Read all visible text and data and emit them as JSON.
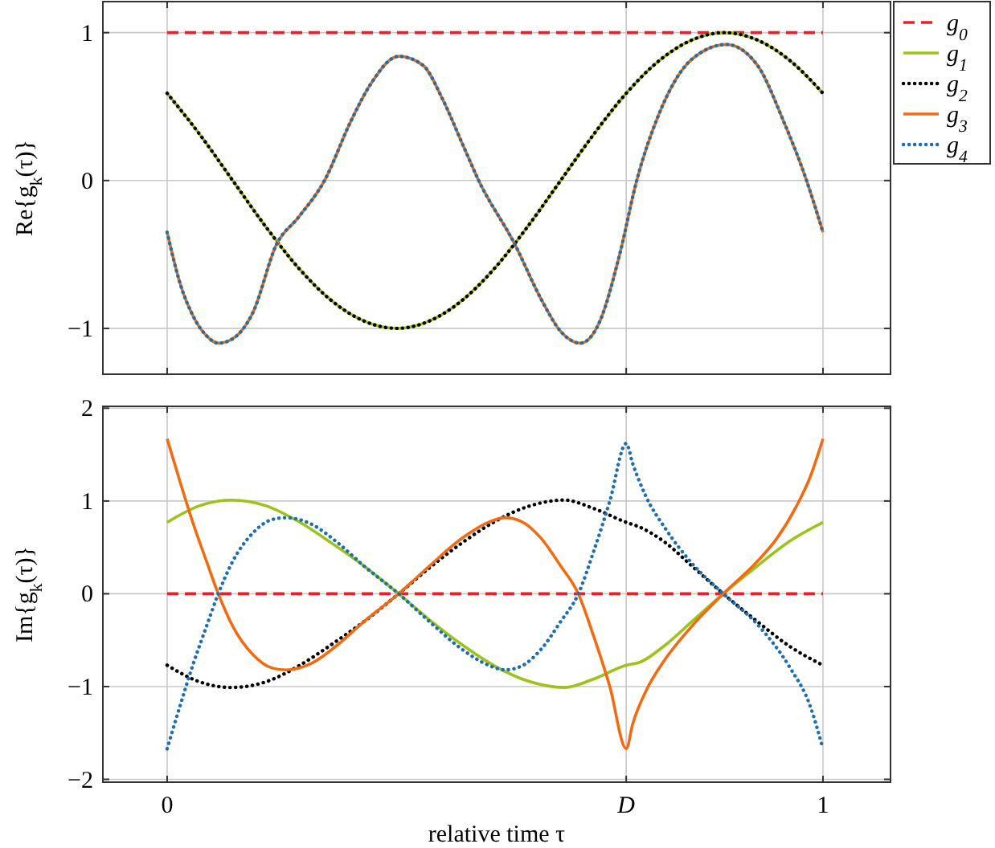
{
  "chart_data": [
    {
      "type": "line",
      "ylabel": "Re{g$_{k}$(τ)}",
      "xlim": [
        -0.098,
        1.103
      ],
      "xticks": [
        {
          "value": 0,
          "label": null
        },
        {
          "value": 0.7,
          "label": null
        },
        {
          "value": 1,
          "label": null
        }
      ],
      "ylim": [
        -1.31,
        1.21
      ],
      "yticks": [
        -1,
        0,
        1
      ],
      "tick_labels": "y",
      "grid": true,
      "legend": "top right",
      "series": [
        {
          "name": "g$_{0}$",
          "color": "#e8202a",
          "line_style": "dashed",
          "x": [
            0,
            1
          ],
          "values": [
            1,
            1
          ]
        },
        {
          "name": "g$_{1}$",
          "color": "#9bc31c",
          "line_style": "solid",
          "x": [
            0,
            0.05,
            0.1,
            0.15,
            0.2,
            0.25,
            0.3,
            0.35,
            0.4,
            0.45,
            0.5,
            0.55,
            0.6,
            0.65,
            0.7,
            0.75,
            0.8,
            0.85,
            0.9,
            0.95,
            1
          ],
          "values": [
            0.59,
            0.31,
            0.0,
            -0.31,
            -0.59,
            -0.81,
            -0.95,
            -1.0,
            -0.95,
            -0.81,
            -0.59,
            -0.31,
            0.0,
            0.31,
            0.59,
            0.81,
            0.95,
            1.0,
            0.95,
            0.81,
            0.59
          ]
        },
        {
          "name": "g$_{2}$",
          "color": "#000000",
          "line_style": "dotted",
          "x": [
            0,
            0.05,
            0.1,
            0.15,
            0.2,
            0.25,
            0.3,
            0.35,
            0.4,
            0.45,
            0.5,
            0.55,
            0.6,
            0.65,
            0.7,
            0.75,
            0.8,
            0.85,
            0.9,
            0.95,
            1
          ],
          "values": [
            0.59,
            0.31,
            0.0,
            -0.31,
            -0.59,
            -0.81,
            -0.95,
            -1.0,
            -0.95,
            -0.81,
            -0.59,
            -0.31,
            0.0,
            0.31,
            0.59,
            0.81,
            0.95,
            1.0,
            0.95,
            0.81,
            0.59
          ]
        },
        {
          "name": "g$_{3}$",
          "color": "#f26b10",
          "line_style": "solid",
          "x": [
            0,
            0.02,
            0.04,
            0.06,
            0.078,
            0.1,
            0.13,
            0.167,
            0.2,
            0.24,
            0.28,
            0.31,
            0.353,
            0.39,
            0.42,
            0.45,
            0.475,
            0.53,
            0.57,
            0.6,
            0.63,
            0.66,
            0.69,
            0.716,
            0.75,
            0.8,
            0.853,
            0.9,
            0.94,
            0.975,
            1
          ],
          "values": [
            -0.35,
            -0.7,
            -0.92,
            -1.05,
            -1.1,
            -1.07,
            -0.9,
            -0.43,
            -0.25,
            0,
            0.4,
            0.65,
            0.84,
            0.78,
            0.55,
            0.25,
            0,
            -0.43,
            -0.8,
            -1.02,
            -1.1,
            -0.95,
            -0.5,
            0,
            0.45,
            0.82,
            0.92,
            0.78,
            0.4,
            0,
            -0.35
          ]
        },
        {
          "name": "g$_{4}$",
          "color": "#1f6fae",
          "line_style": "dotted",
          "x": [
            0,
            0.02,
            0.04,
            0.06,
            0.078,
            0.1,
            0.13,
            0.167,
            0.2,
            0.24,
            0.28,
            0.31,
            0.353,
            0.39,
            0.42,
            0.45,
            0.475,
            0.53,
            0.57,
            0.6,
            0.63,
            0.66,
            0.69,
            0.716,
            0.75,
            0.8,
            0.853,
            0.9,
            0.94,
            0.975,
            1
          ],
          "values": [
            -0.35,
            -0.7,
            -0.92,
            -1.05,
            -1.1,
            -1.07,
            -0.9,
            -0.43,
            -0.25,
            0,
            0.4,
            0.65,
            0.84,
            0.78,
            0.55,
            0.25,
            0,
            -0.43,
            -0.8,
            -1.02,
            -1.1,
            -0.95,
            -0.5,
            0,
            0.45,
            0.82,
            0.92,
            0.78,
            0.4,
            0,
            -0.35
          ]
        }
      ]
    },
    {
      "type": "line",
      "xlabel": "relative time τ",
      "ylabel": "Im{g$_{k}$(τ)}",
      "xlim": [
        -0.098,
        1.103
      ],
      "xticks": [
        0,
        {
          "value": 0.7,
          "label": "D"
        },
        1
      ],
      "ylim": [
        -2.03,
        2.02
      ],
      "yticks": [
        -2,
        -1,
        0,
        1,
        2
      ],
      "grid": true,
      "series": [
        {
          "color": "#e8202a",
          "line_style": "dashed",
          "x": [
            0,
            1
          ],
          "values": [
            0,
            0
          ]
        },
        {
          "color": "#9bc31c",
          "line_style": "solid",
          "x": [
            0,
            0.05,
            0.098,
            0.15,
            0.2,
            0.25,
            0.3,
            0.353,
            0.4,
            0.45,
            0.5,
            0.55,
            0.606,
            0.65,
            0.7,
            0.72,
            0.76,
            0.8,
            0.848,
            0.9,
            0.95,
            1
          ],
          "values": [
            0.77,
            0.95,
            1.01,
            0.95,
            0.78,
            0.55,
            0.3,
            0,
            -0.28,
            -0.55,
            -0.78,
            -0.94,
            -1.01,
            -0.92,
            -0.77,
            -0.74,
            -0.55,
            -0.3,
            0,
            0.3,
            0.57,
            0.77
          ]
        },
        {
          "color": "#000000",
          "line_style": "dotted",
          "x": [
            0,
            0.05,
            0.098,
            0.15,
            0.2,
            0.25,
            0.3,
            0.353,
            0.4,
            0.45,
            0.5,
            0.55,
            0.606,
            0.65,
            0.7,
            0.72,
            0.76,
            0.8,
            0.848,
            0.9,
            0.95,
            1
          ],
          "values": [
            -0.77,
            -0.95,
            -1.01,
            -0.95,
            -0.78,
            -0.55,
            -0.3,
            0,
            0.28,
            0.55,
            0.78,
            0.94,
            1.01,
            0.92,
            0.77,
            0.72,
            0.55,
            0.3,
            0,
            -0.3,
            -0.57,
            -0.77
          ]
        },
        {
          "color": "#f26b10",
          "line_style": "solid",
          "x": [
            0,
            0.02,
            0.04,
            0.06,
            0.078,
            0.1,
            0.13,
            0.16,
            0.181,
            0.22,
            0.26,
            0.3,
            0.353,
            0.4,
            0.45,
            0.49,
            0.515,
            0.54,
            0.57,
            0.6,
            0.627,
            0.65,
            0.675,
            0.7,
            0.71,
            0.73,
            0.76,
            0.8,
            0.848,
            0.9,
            0.93,
            0.96,
            0.98,
            1
          ],
          "values": [
            1.67,
            1.2,
            0.75,
            0.35,
            0,
            -0.35,
            -0.65,
            -0.8,
            -0.82,
            -0.75,
            -0.55,
            -0.3,
            0,
            0.3,
            0.6,
            0.77,
            0.82,
            0.78,
            0.6,
            0.3,
            0,
            -0.45,
            -1.0,
            -1.67,
            -1.4,
            -1.05,
            -0.7,
            -0.35,
            0,
            0.35,
            0.6,
            0.95,
            1.25,
            1.67
          ]
        },
        {
          "color": "#1f6fae",
          "line_style": "dotted",
          "x": [
            0,
            0.02,
            0.04,
            0.06,
            0.078,
            0.1,
            0.13,
            0.16,
            0.181,
            0.22,
            0.26,
            0.3,
            0.353,
            0.4,
            0.45,
            0.49,
            0.515,
            0.54,
            0.57,
            0.6,
            0.627,
            0.65,
            0.675,
            0.7,
            0.71,
            0.73,
            0.76,
            0.8,
            0.848,
            0.9,
            0.95,
            0.98,
            1
          ],
          "values": [
            -1.67,
            -1.2,
            -0.75,
            -0.35,
            0,
            0.35,
            0.65,
            0.8,
            0.82,
            0.75,
            0.55,
            0.3,
            0,
            -0.3,
            -0.6,
            -0.77,
            -0.82,
            -0.78,
            -0.6,
            -0.3,
            0,
            0.45,
            1.0,
            1.62,
            1.4,
            1.05,
            0.7,
            0.33,
            0,
            -0.33,
            -0.8,
            -1.2,
            -1.67
          ]
        }
      ]
    }
  ]
}
